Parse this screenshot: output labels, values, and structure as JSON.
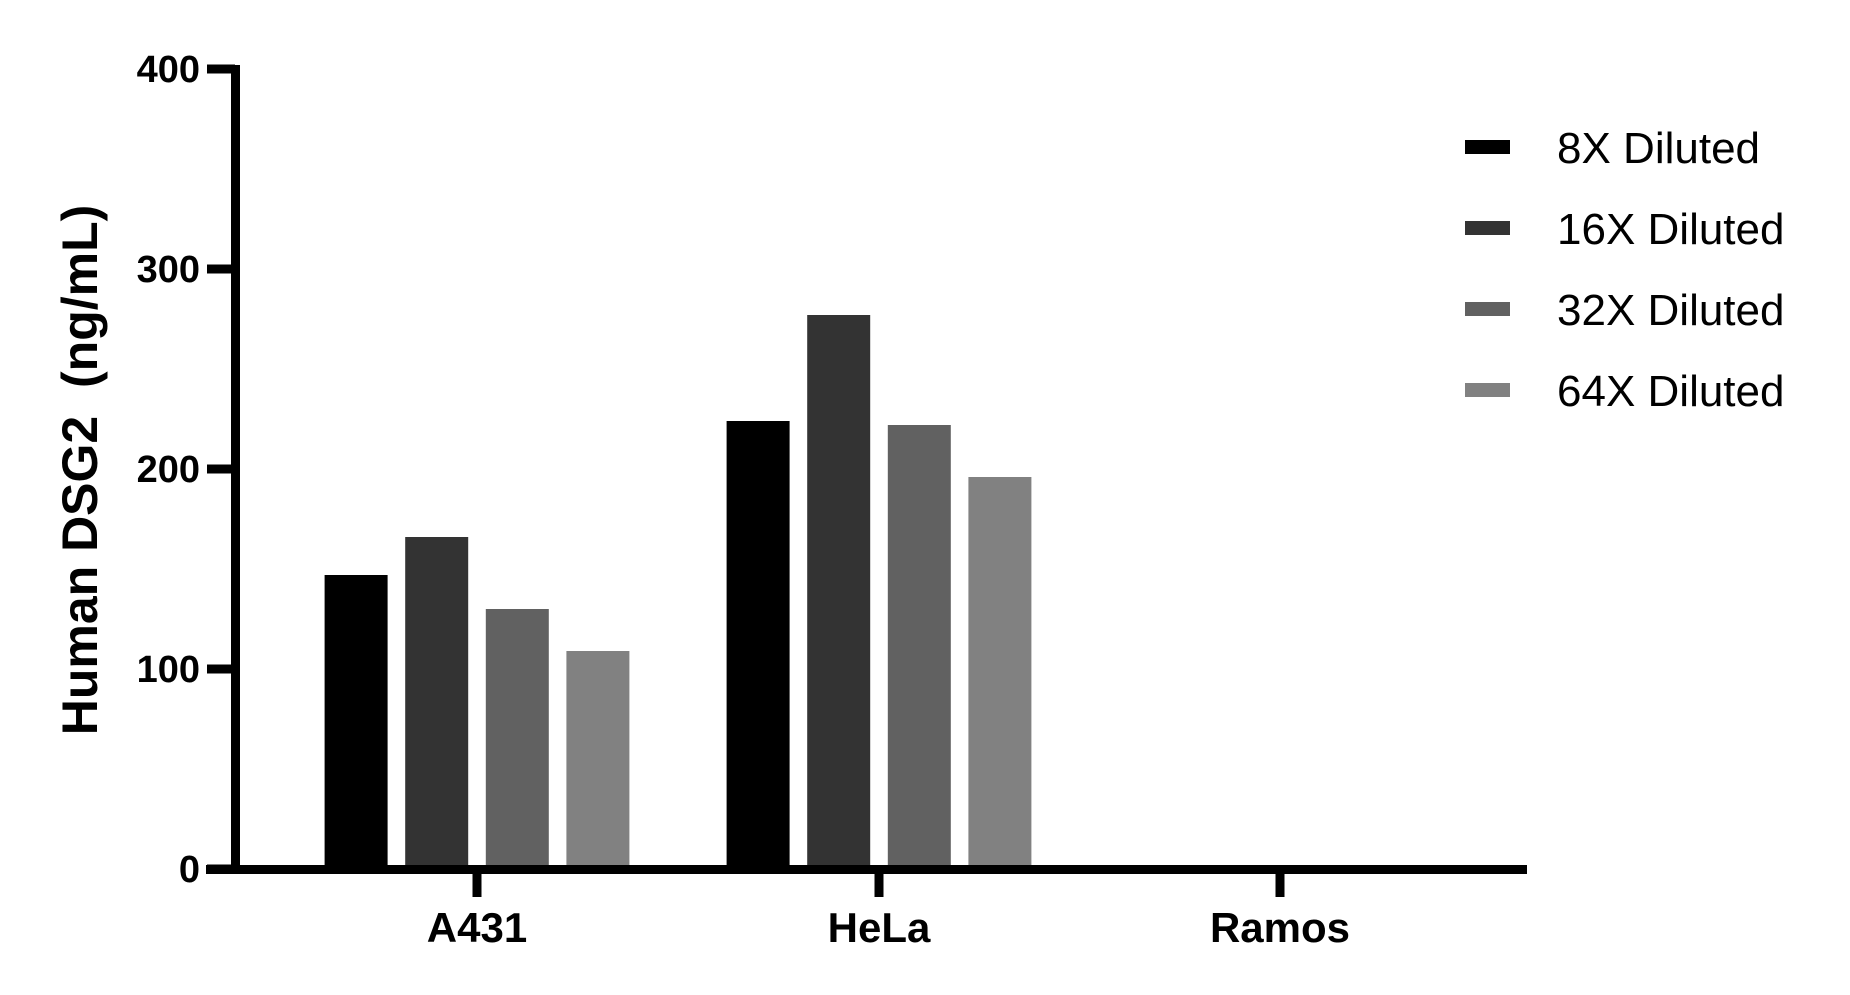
{
  "chart_data": {
    "type": "bar",
    "title": "",
    "xlabel": "",
    "ylabel": "Human DSG2  (ng/mL)",
    "ylim": [
      0,
      400
    ],
    "yticks": [
      0,
      100,
      200,
      300,
      400
    ],
    "ytick_labels": [
      "0",
      "100",
      "200",
      "300",
      "400"
    ],
    "grid": false,
    "legend_position": "right",
    "categories": [
      "A431",
      "HeLa",
      "Ramos"
    ],
    "series": [
      {
        "name": "8X Diluted",
        "color": "#000000",
        "values": [
          147,
          224,
          0
        ]
      },
      {
        "name": "16X Diluted",
        "color": "#333333",
        "values": [
          166,
          277,
          0
        ]
      },
      {
        "name": "32X Diluted",
        "color": "#616161",
        "values": [
          130,
          222,
          0
        ]
      },
      {
        "name": "64X Diluted",
        "color": "#818181",
        "values": [
          109,
          196,
          0
        ]
      }
    ]
  },
  "axis": {
    "y_title": "Human DSG2  (ng/mL)",
    "y_tick_labels": [
      "0",
      "100",
      "200",
      "300",
      "400"
    ],
    "x_categories": [
      "A431",
      "HeLa",
      "Ramos"
    ]
  },
  "legend": {
    "items": [
      {
        "label": "8X Diluted",
        "color": "#000000"
      },
      {
        "label": "16X Diluted",
        "color": "#333333"
      },
      {
        "label": "32X Diluted",
        "color": "#616161"
      },
      {
        "label": "64X Diluted",
        "color": "#818181"
      }
    ]
  }
}
